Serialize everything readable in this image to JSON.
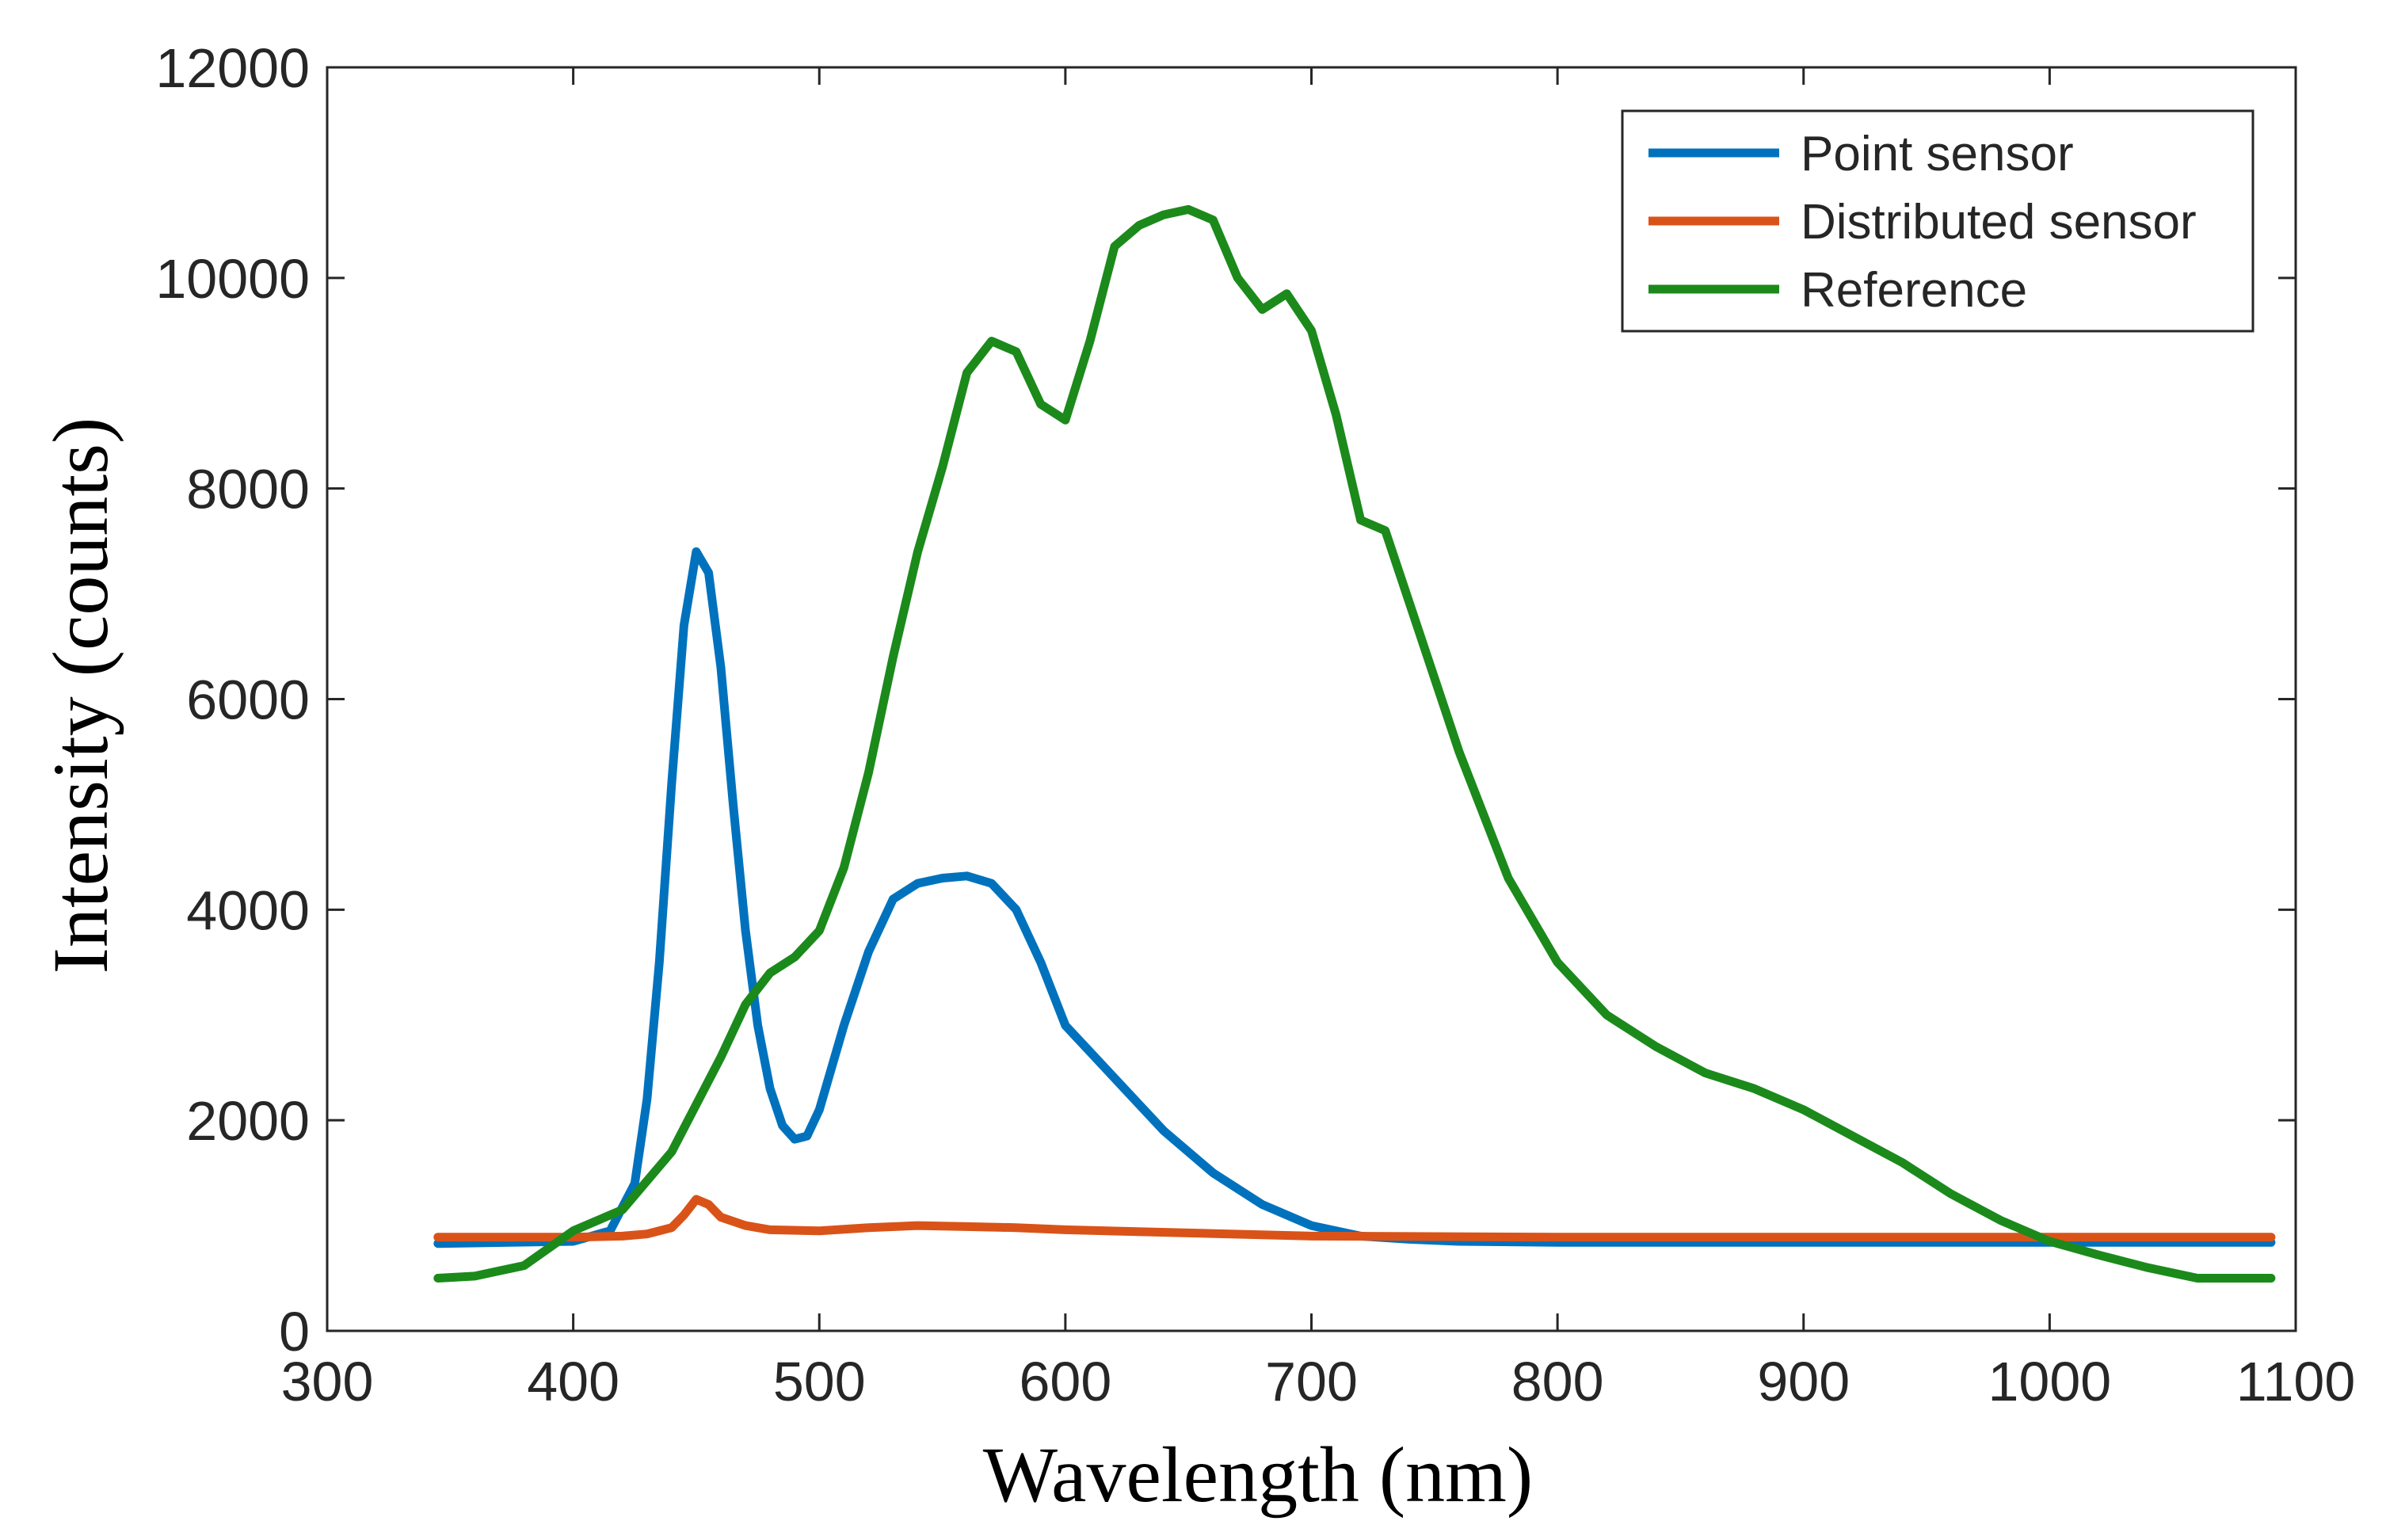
{
  "chart_data": {
    "type": "line",
    "title": "",
    "xlabel": "Wavelength (nm)",
    "ylabel": "Intensity (counts)",
    "xlim": [
      300,
      1100
    ],
    "ylim": [
      0,
      12000
    ],
    "xticks": [
      300,
      400,
      500,
      600,
      700,
      800,
      900,
      1000,
      1100
    ],
    "yticks": [
      0,
      2000,
      4000,
      6000,
      8000,
      10000,
      12000
    ],
    "grid": false,
    "legend_position": "top-right",
    "series": [
      {
        "name": "Point sensor",
        "color": "#0072BD",
        "x": [
          345,
          400,
          415,
          425,
          430,
          435,
          440,
          445,
          450,
          455,
          460,
          465,
          470,
          475,
          480,
          485,
          490,
          495,
          500,
          510,
          520,
          530,
          540,
          550,
          560,
          570,
          580,
          590,
          600,
          620,
          640,
          660,
          680,
          700,
          720,
          740,
          760,
          800,
          900,
          1000,
          1090
        ],
        "y": [
          830,
          850,
          950,
          1400,
          2200,
          3500,
          5200,
          6700,
          7400,
          7200,
          6300,
          5000,
          3800,
          2900,
          2300,
          1950,
          1820,
          1850,
          2100,
          2900,
          3600,
          4100,
          4250,
          4300,
          4320,
          4250,
          4000,
          3500,
          2900,
          2400,
          1900,
          1500,
          1200,
          1000,
          900,
          870,
          850,
          840,
          840,
          840,
          840
        ]
      },
      {
        "name": "Distributed sensor",
        "color": "#D95319",
        "x": [
          345,
          400,
          420,
          430,
          440,
          445,
          450,
          455,
          460,
          470,
          480,
          500,
          520,
          540,
          560,
          580,
          600,
          650,
          700,
          800,
          900,
          1000,
          1090
        ],
        "y": [
          890,
          890,
          900,
          920,
          980,
          1100,
          1250,
          1200,
          1080,
          1000,
          960,
          950,
          980,
          1000,
          990,
          980,
          960,
          930,
          900,
          890,
          890,
          890,
          890
        ]
      },
      {
        "name": "Reference",
        "color": "#1B8A1B",
        "x": [
          345,
          360,
          380,
          400,
          420,
          440,
          460,
          470,
          480,
          490,
          500,
          510,
          520,
          530,
          540,
          550,
          560,
          570,
          580,
          590,
          600,
          610,
          620,
          630,
          640,
          650,
          660,
          670,
          680,
          690,
          700,
          710,
          720,
          730,
          740,
          760,
          780,
          800,
          820,
          840,
          860,
          880,
          900,
          920,
          940,
          960,
          980,
          1000,
          1020,
          1040,
          1060,
          1080,
          1090
        ],
        "y": [
          500,
          520,
          620,
          950,
          1150,
          1700,
          2600,
          3100,
          3400,
          3550,
          3800,
          4400,
          5300,
          6400,
          7400,
          8200,
          9100,
          9400,
          9300,
          8800,
          8650,
          9400,
          10300,
          10500,
          10600,
          10650,
          10550,
          10000,
          9700,
          9850,
          9500,
          8700,
          7700,
          7600,
          6900,
          5500,
          4300,
          3500,
          3000,
          2700,
          2450,
          2300,
          2100,
          1850,
          1600,
          1300,
          1050,
          850,
          720,
          600,
          500,
          500,
          500
        ]
      }
    ]
  }
}
